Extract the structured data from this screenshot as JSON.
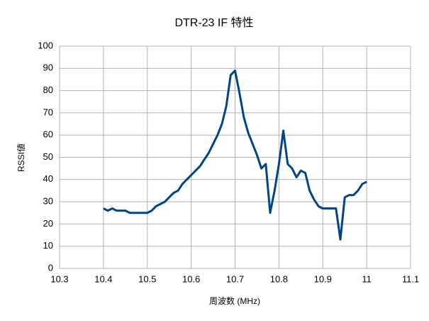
{
  "chart_data": {
    "type": "line",
    "title": "DTR-23 IF 特性",
    "x_label": "周波数 (MHz)",
    "y_label": "RSSI値",
    "x": [
      10.4,
      10.41,
      10.42,
      10.43,
      10.44,
      10.45,
      10.46,
      10.47,
      10.48,
      10.49,
      10.5,
      10.51,
      10.52,
      10.53,
      10.54,
      10.55,
      10.56,
      10.57,
      10.58,
      10.59,
      10.6,
      10.61,
      10.62,
      10.63,
      10.64,
      10.65,
      10.66,
      10.67,
      10.68,
      10.69,
      10.7,
      10.71,
      10.72,
      10.73,
      10.74,
      10.75,
      10.76,
      10.77,
      10.78,
      10.79,
      10.8,
      10.81,
      10.82,
      10.83,
      10.84,
      10.85,
      10.86,
      10.87,
      10.88,
      10.89,
      10.9,
      10.91,
      10.92,
      10.93,
      10.94,
      10.95,
      10.96,
      10.97,
      10.98,
      10.99,
      11
    ],
    "series": [
      {
        "name": "RSSI値",
        "color": "#004586",
        "values": [
          27,
          26,
          27,
          26,
          26,
          26,
          25,
          25,
          25,
          25,
          25,
          26,
          28,
          29,
          30,
          32,
          34,
          35,
          38,
          40,
          42,
          44,
          46,
          49,
          52,
          56,
          60,
          65,
          73,
          87,
          89,
          79,
          68,
          61,
          56,
          51,
          45,
          47,
          25,
          35,
          47,
          62,
          47,
          45,
          41,
          44,
          43,
          35,
          31,
          28,
          27,
          27,
          27,
          27,
          13,
          32,
          33,
          33,
          35,
          38,
          39
        ]
      }
    ],
    "xlim": [
      10.3,
      11.1
    ],
    "xticks": [
      10.3,
      10.4,
      10.5,
      10.6,
      10.7,
      10.8,
      10.9,
      11,
      11.1
    ],
    "ylim": [
      0,
      100
    ],
    "yticks": [
      0,
      10,
      20,
      30,
      40,
      50,
      60,
      70,
      80,
      90,
      100
    ],
    "grid": true
  }
}
